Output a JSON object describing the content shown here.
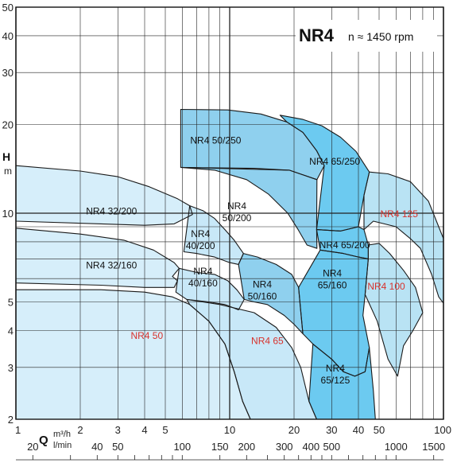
{
  "chart_data": {
    "type": "area",
    "title": "NR4",
    "subtitle": "n ≈ 1450 rpm",
    "xlabel": "Q",
    "xunit_primary": "m³/h",
    "xunit_secondary": "l/min",
    "ylabel": "H",
    "yunit": "m",
    "x_scale": "log",
    "y_scale": "log",
    "xlim": [
      1,
      100
    ],
    "ylim": [
      2,
      50
    ],
    "grid": true,
    "x_ticks_m3h": [
      "1",
      "2",
      "3",
      "4",
      "5",
      "10",
      "20",
      "30",
      "40",
      "50",
      "100"
    ],
    "x_ticks_lmin": [
      "20",
      "40",
      "50",
      "100",
      "150",
      "200",
      "300",
      "400",
      "500",
      "1000",
      "1500"
    ],
    "y_ticks": [
      "2",
      "3",
      "4",
      "5",
      "10",
      "20",
      "30",
      "40",
      "50"
    ],
    "areas": [
      {
        "name": "NR4 50/250",
        "color": "#8fd0ee",
        "label_lines": [
          "NR4 50/250"
        ],
        "label_at": [
          8.6,
          17.2
        ],
        "label_red": false,
        "points": [
          [
            5.9,
            22.5
          ],
          [
            9.8,
            22.4
          ],
          [
            14.0,
            21.7
          ],
          [
            18.5,
            20.4
          ],
          [
            22.0,
            18.8
          ],
          [
            25.5,
            16.3
          ],
          [
            27.7,
            14.5
          ],
          [
            25.6,
            13.0
          ],
          [
            19.0,
            14.0
          ],
          [
            13.0,
            14.2
          ],
          [
            5.9,
            14.3
          ]
        ]
      },
      {
        "name": "NR4 65/250",
        "color": "#6ccaf0",
        "label_lines": [
          "NR4 65/250"
        ],
        "label_at": [
          31.0,
          14.6
        ],
        "label_red": false,
        "points": [
          [
            17.2,
            21.5
          ],
          [
            22.0,
            20.8
          ],
          [
            27.0,
            19.8
          ],
          [
            33.0,
            18.1
          ],
          [
            39.0,
            16.2
          ],
          [
            45.0,
            13.8
          ],
          [
            42.5,
            11.5
          ],
          [
            40.0,
            9.0
          ],
          [
            33.0,
            8.7
          ],
          [
            25.5,
            8.8
          ],
          [
            27.7,
            14.5
          ],
          [
            25.5,
            16.3
          ],
          [
            22.0,
            18.8
          ],
          [
            18.5,
            20.4
          ]
        ]
      },
      {
        "name": "NR4 125",
        "color": "#b9e3f4",
        "label_lines": [
          "NR4 125"
        ],
        "label_at": [
          62.0,
          9.7
        ],
        "label_red": true,
        "points": [
          [
            45.0,
            13.8
          ],
          [
            55.0,
            13.6
          ],
          [
            70.0,
            12.8
          ],
          [
            85.0,
            11.0
          ],
          [
            95.0,
            9.0
          ],
          [
            100.0,
            8.2
          ],
          [
            100.0,
            6.0
          ],
          [
            100.0,
            4.95
          ],
          [
            95.0,
            5.2
          ],
          [
            88.0,
            6.2
          ],
          [
            78.0,
            7.6
          ],
          [
            70.0,
            8.2
          ],
          [
            60.0,
            9.0
          ],
          [
            47.0,
            9.4
          ],
          [
            42.5,
            8.8
          ],
          [
            42.5,
            11.5
          ]
        ]
      },
      {
        "name": "NR4 65/200",
        "color": "#6ccaf0",
        "label_lines": [
          "NR4 65/200"
        ],
        "label_at": [
          34.5,
          7.6
        ],
        "label_red": false,
        "points": [
          [
            25.5,
            8.8
          ],
          [
            33.0,
            8.7
          ],
          [
            40.0,
            9.0
          ],
          [
            42.5,
            8.8
          ],
          [
            44.5,
            7.8
          ],
          [
            44.5,
            7.0
          ],
          [
            40.0,
            7.1
          ],
          [
            34.0,
            7.3
          ],
          [
            26.5,
            7.5
          ]
        ]
      },
      {
        "name": "NR4 100",
        "color": "#b9e3f4",
        "label_lines": [
          "NR4 100"
        ],
        "label_at": [
          54.0,
          5.5
        ],
        "label_red": true,
        "points": [
          [
            44.5,
            7.8
          ],
          [
            50.0,
            7.9
          ],
          [
            56.0,
            7.3
          ],
          [
            65.0,
            6.4
          ],
          [
            74.0,
            5.6
          ],
          [
            80.0,
            4.6
          ],
          [
            72.0,
            4.0
          ],
          [
            65.0,
            3.55
          ],
          [
            61.0,
            2.8
          ],
          [
            55.0,
            3.2
          ],
          [
            49.0,
            4.3
          ],
          [
            43.0,
            5.3
          ],
          [
            44.5,
            7.0
          ]
        ]
      },
      {
        "name": "NR4 65/160",
        "color": "#6ccaf0",
        "label_lines": [
          "NR4",
          "65/160"
        ],
        "label_at": [
          30.2,
          6.1
        ],
        "label_red": false,
        "points": [
          [
            26.5,
            7.5
          ],
          [
            34.0,
            7.3
          ],
          [
            40.0,
            7.1
          ],
          [
            44.5,
            7.0
          ],
          [
            43.0,
            5.3
          ],
          [
            42.0,
            4.5
          ],
          [
            45.0,
            3.5
          ],
          [
            43.0,
            2.9
          ],
          [
            38.5,
            2.8
          ],
          [
            34.0,
            2.9
          ],
          [
            30.0,
            3.2
          ],
          [
            24.5,
            3.6
          ],
          [
            22.0,
            3.9
          ],
          [
            21.0,
            5.6
          ]
        ]
      },
      {
        "name": "NR4 65/125",
        "color": "#6ccaf0",
        "label_lines": [
          "NR4",
          "65/125"
        ],
        "label_at": [
          31.2,
          2.9
        ],
        "label_red": false,
        "points": [
          [
            24.5,
            3.6
          ],
          [
            30.0,
            3.2
          ],
          [
            34.0,
            2.9
          ],
          [
            38.5,
            2.8
          ],
          [
            43.0,
            2.9
          ],
          [
            45.0,
            3.5
          ],
          [
            47.0,
            2.5
          ],
          [
            48.0,
            2.0
          ],
          [
            28.0,
            2.0
          ],
          [
            25.5,
            2.0
          ],
          [
            23.5,
            2.3
          ],
          [
            24.0,
            2.9
          ]
        ]
      },
      {
        "name": "NR4 32/200",
        "color": "#d6eefa",
        "label_lines": [
          "NR4 32/200"
        ],
        "label_at": [
          2.8,
          9.9
        ],
        "label_red": false,
        "points": [
          [
            1.0,
            14.5
          ],
          [
            2.0,
            13.9
          ],
          [
            3.0,
            13.3
          ],
          [
            4.2,
            12.3
          ],
          [
            5.7,
            11.2
          ],
          [
            6.5,
            10.6
          ],
          [
            6.7,
            9.9
          ],
          [
            5.5,
            9.2
          ],
          [
            4.0,
            9.1
          ],
          [
            2.5,
            9.2
          ],
          [
            1.0,
            9.4
          ]
        ]
      },
      {
        "name": "NR4 32/160",
        "color": "#d6eefa",
        "label_lines": [
          "NR4 32/160"
        ],
        "label_at": [
          2.8,
          6.5
        ],
        "label_red": false,
        "points": [
          [
            1.0,
            8.9
          ],
          [
            2.0,
            8.5
          ],
          [
            3.2,
            8.1
          ],
          [
            4.4,
            7.5
          ],
          [
            5.5,
            6.8
          ],
          [
            5.8,
            6.5
          ],
          [
            5.4,
            6.1
          ],
          [
            5.7,
            5.9
          ],
          [
            5.5,
            5.6
          ],
          [
            4.0,
            5.6
          ],
          [
            2.5,
            5.7
          ],
          [
            1.0,
            5.8
          ]
        ]
      },
      {
        "name": "NR4 40/200",
        "color": "#c8e8f8",
        "label_lines": [
          "NR4",
          "40/200"
        ],
        "label_at": [
          7.3,
          8.3
        ],
        "label_red": false,
        "points": [
          [
            6.5,
            10.6
          ],
          [
            7.5,
            10.2
          ],
          [
            8.5,
            9.6
          ],
          [
            9.5,
            8.8
          ],
          [
            10.5,
            8.1
          ],
          [
            11.6,
            7.3
          ],
          [
            11.0,
            6.7
          ],
          [
            10.0,
            6.8
          ],
          [
            8.5,
            7.1
          ],
          [
            7.0,
            7.3
          ],
          [
            6.1,
            7.4
          ]
        ]
      },
      {
        "name": "NR4 40/160",
        "color": "#c8e8f8",
        "label_lines": [
          "NR4",
          "40/160"
        ],
        "label_at": [
          7.5,
          6.2
        ],
        "label_red": false,
        "points": [
          [
            5.8,
            6.5
          ],
          [
            7.0,
            6.3
          ],
          [
            8.5,
            6.2
          ],
          [
            9.8,
            5.9
          ],
          [
            10.8,
            5.5
          ],
          [
            11.7,
            5.1
          ],
          [
            11.0,
            4.7
          ],
          [
            9.5,
            4.9
          ],
          [
            8.0,
            5.0
          ],
          [
            6.3,
            5.1
          ],
          [
            5.6,
            5.4
          ]
        ]
      },
      {
        "name": "NR4 50/200",
        "color": "#8fd0ee",
        "label_lines": [
          "NR4",
          "50/200"
        ],
        "label_at": [
          10.8,
          10.3
        ],
        "label_red": false,
        "points": [
          [
            5.9,
            14.3
          ],
          [
            8.5,
            14.0
          ],
          [
            12.0,
            13.0
          ],
          [
            15.2,
            11.6
          ],
          [
            18.7,
            10.0
          ],
          [
            20.9,
            8.8
          ],
          [
            23.0,
            7.8
          ],
          [
            25.6,
            7.6
          ],
          [
            25.5,
            8.8
          ],
          [
            25.6,
            13.0
          ],
          [
            19.0,
            14.0
          ]
        ]
      },
      {
        "name": "NR4 50/160",
        "color": "#8fd0ee",
        "label_lines": [
          "NR4",
          "50/160"
        ],
        "label_at": [
          14.2,
          5.6
        ],
        "label_red": false,
        "points": [
          [
            11.6,
            7.3
          ],
          [
            13.5,
            7.1
          ],
          [
            16.5,
            6.7
          ],
          [
            19.5,
            6.2
          ],
          [
            21.0,
            5.6
          ],
          [
            21.4,
            4.8
          ],
          [
            22.0,
            3.9
          ],
          [
            20.0,
            4.2
          ],
          [
            18.0,
            4.5
          ],
          [
            15.0,
            4.9
          ],
          [
            13.0,
            5.0
          ],
          [
            11.7,
            5.1
          ],
          [
            11.0,
            6.7
          ]
        ]
      },
      {
        "name": "NR4 50",
        "color": "#d6eefa",
        "label_lines": [
          "NR4 50"
        ],
        "label_at": [
          4.1,
          3.75
        ],
        "label_red": true,
        "points": [
          [
            1.0,
            5.5
          ],
          [
            2.5,
            5.5
          ],
          [
            4.0,
            5.4
          ],
          [
            5.4,
            5.2
          ],
          [
            6.5,
            4.9
          ],
          [
            8.0,
            4.3
          ],
          [
            9.5,
            3.6
          ],
          [
            10.5,
            2.9
          ],
          [
            11.5,
            2.3
          ],
          [
            12.5,
            2.0
          ],
          [
            1.0,
            2.0
          ]
        ]
      },
      {
        "name": "NR4 65",
        "color": "#c8e8f8",
        "label_lines": [
          "NR4 65"
        ],
        "label_at": [
          15.0,
          3.6
        ],
        "label_red": true,
        "points": [
          [
            6.3,
            5.1
          ],
          [
            9.0,
            4.9
          ],
          [
            13.0,
            4.6
          ],
          [
            16.5,
            4.1
          ],
          [
            19.5,
            3.5
          ],
          [
            21.5,
            3.0
          ],
          [
            23.5,
            2.3
          ],
          [
            25.5,
            2.0
          ],
          [
            12.5,
            2.0
          ],
          [
            11.5,
            2.3
          ],
          [
            10.5,
            2.9
          ],
          [
            9.5,
            3.6
          ],
          [
            8.0,
            4.3
          ],
          [
            6.5,
            4.9
          ]
        ]
      }
    ]
  }
}
